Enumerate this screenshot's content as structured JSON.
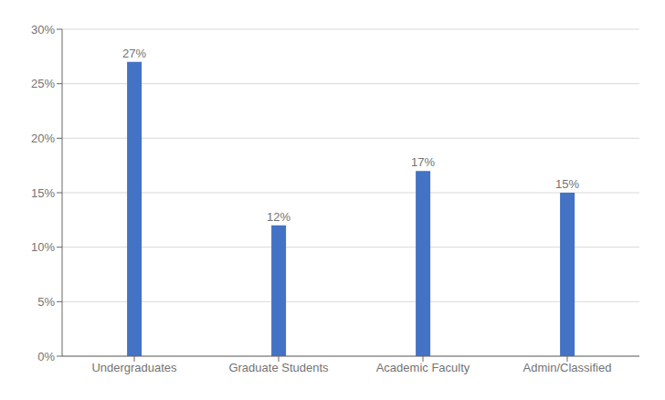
{
  "chart_data": {
    "type": "bar",
    "categories": [
      "Undergraduates",
      "Graduate Students",
      "Academic Faculty",
      "Admin/Classified"
    ],
    "values": [
      27,
      12,
      17,
      15
    ],
    "value_labels": [
      "27%",
      "12%",
      "17%",
      "15%"
    ],
    "data_labels": true,
    "color": "#4472c4",
    "ylim": [
      0,
      30
    ],
    "yticks": [
      {
        "value": 0,
        "label": "0%"
      },
      {
        "value": 5,
        "label": "5%"
      },
      {
        "value": 10,
        "label": "10%"
      },
      {
        "value": 15,
        "label": "15%"
      },
      {
        "value": 20,
        "label": "20%"
      },
      {
        "value": 25,
        "label": "25%"
      },
      {
        "value": 30,
        "label": "30%"
      }
    ],
    "grid": true
  }
}
